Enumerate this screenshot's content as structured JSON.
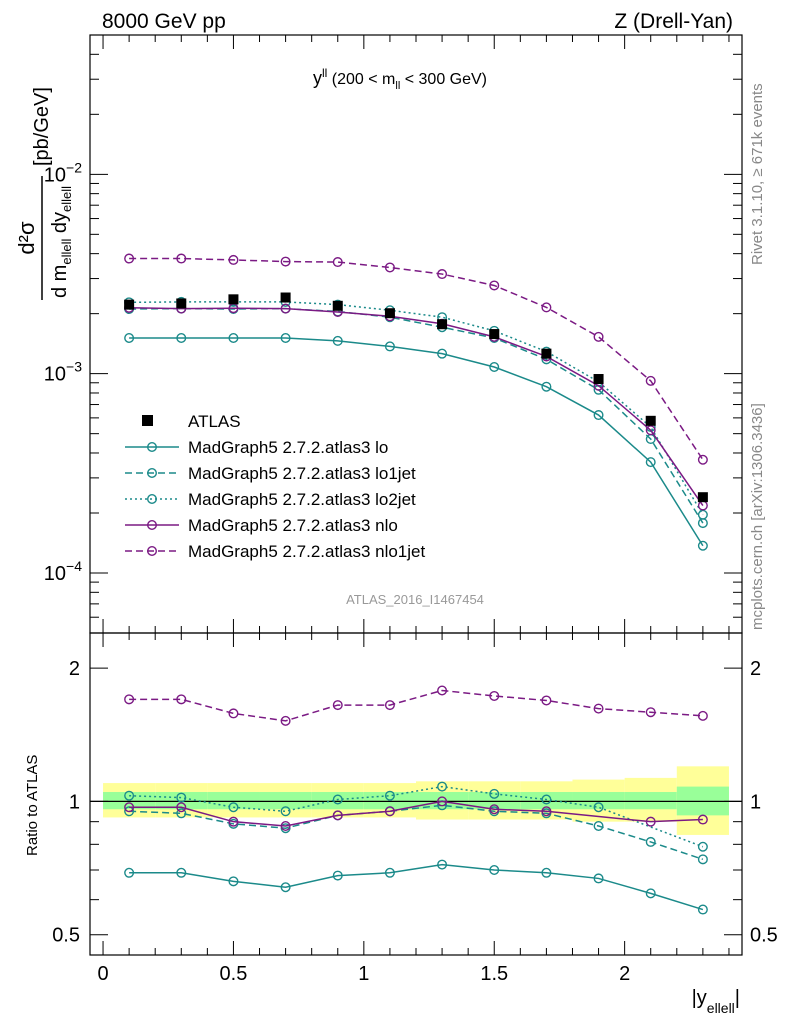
{
  "header": {
    "left": "8000 GeV pp",
    "right": "Z (Drell-Yan)"
  },
  "side_labels": {
    "rivet": "Rivet 3.1.10, ≥ 671k events",
    "mcplots": "mcplots.cern.ch [arXiv:1306.3436]"
  },
  "colors": {
    "teal": "#1b8a8a",
    "purple": "#7b1a84",
    "band_inner": "#99ff99",
    "band_outer": "#ffff99",
    "data": "#000000"
  },
  "chart_data": [
    {
      "type": "line",
      "panel": "main",
      "title": "y^ll (200 < m_ll < 300 GeV)",
      "title_parts": {
        "base": "y",
        "sup": "ll",
        "open": "(200 < m",
        "sub": "ll",
        "close": " < 300 GeV)"
      },
      "ylabel": "d²σ / d m_ellell dy_ellell [pb/GeV]",
      "ylabel_parts": {
        "num": "d²σ",
        "den_d": "d m",
        "den_sub": "ellell",
        "den_dy": "dy",
        "den_dy_sub": "ellell",
        "unit": "[pb/GeV]"
      },
      "yscale": "log",
      "ylim": [
        5e-05,
        0.05
      ],
      "xlim": [
        -0.05,
        2.45
      ],
      "yticks": [
        {
          "value": 0.0001,
          "label": "10",
          "exp": "−4"
        },
        {
          "value": 0.001,
          "label": "10",
          "exp": "−3"
        },
        {
          "value": 0.01,
          "label": "10",
          "exp": "−2"
        }
      ],
      "watermark": "ATLAS_2016_I1467454",
      "legend_position": "middle-left",
      "x": [
        0.1,
        0.3,
        0.5,
        0.7,
        0.9,
        1.1,
        1.3,
        1.5,
        1.7,
        1.9,
        2.1,
        2.3
      ],
      "data": {
        "name": "ATLAS",
        "values": [
          0.00222,
          0.00225,
          0.00236,
          0.00241,
          0.00219,
          0.00201,
          0.00177,
          0.00158,
          0.00126,
          0.00094,
          0.00058,
          0.00024
        ]
      },
      "series": [
        {
          "name": "MadGraph5 2.7.2.atlas3 lo",
          "color": "#1b8a8a",
          "dash": "solid",
          "values": [
            0.00151,
            0.00151,
            0.00151,
            0.00151,
            0.00146,
            0.00137,
            0.00126,
            0.00108,
            0.00086,
            0.00062,
            0.00036,
            0.000137
          ]
        },
        {
          "name": "MadGraph5 2.7.2.atlas3 lo1jet",
          "color": "#1b8a8a",
          "dash": "dashed",
          "values": [
            0.00211,
            0.00212,
            0.00211,
            0.00212,
            0.00205,
            0.00192,
            0.00171,
            0.00151,
            0.00118,
            0.00083,
            0.00047,
            0.000178
          ]
        },
        {
          "name": "MadGraph5 2.7.2.atlas3 lo2jet",
          "color": "#1b8a8a",
          "dash": "dotted",
          "values": [
            0.00228,
            0.00229,
            0.00229,
            0.00229,
            0.00222,
            0.00208,
            0.00192,
            0.00164,
            0.00129,
            0.00091,
            0.00054,
            0.000196
          ]
        },
        {
          "name": "MadGraph5 2.7.2.atlas3 nlo",
          "color": "#7b1a84",
          "dash": "solid",
          "values": [
            0.00214,
            0.00212,
            0.00213,
            0.00212,
            0.00204,
            0.00194,
            0.00178,
            0.00153,
            0.00122,
            0.00087,
            0.00052,
            0.000218
          ]
        },
        {
          "name": "MadGraph5 2.7.2.atlas3 nlo1jet",
          "color": "#7b1a84",
          "dash": "dashed",
          "values": [
            0.00378,
            0.00378,
            0.00372,
            0.00365,
            0.00363,
            0.00341,
            0.00316,
            0.00277,
            0.00215,
            0.00153,
            0.00092,
            0.00037
          ]
        }
      ]
    },
    {
      "type": "line",
      "panel": "ratio",
      "ylabel": "Ratio to ATLAS",
      "xlabel": "|y_ellell|",
      "xlabel_parts": {
        "base": "|y",
        "sub": "ellell",
        "close": "|"
      },
      "yscale": "log",
      "ylim": [
        0.45,
        2.4
      ],
      "xlim": [
        -0.05,
        2.45
      ],
      "yticks": [
        0.5,
        1,
        2
      ],
      "xticks": [
        0,
        0.5,
        1,
        1.5,
        2
      ],
      "x": [
        0.1,
        0.3,
        0.5,
        0.7,
        0.9,
        1.1,
        1.3,
        1.5,
        1.7,
        1.9,
        2.1,
        2.3
      ],
      "bands": {
        "x_edges": [
          0.0,
          0.2,
          0.4,
          0.6,
          0.8,
          1.0,
          1.2,
          1.4,
          1.6,
          1.8,
          2.0,
          2.2,
          2.4
        ],
        "inner": [
          [
            0.96,
            1.05
          ],
          [
            0.96,
            1.05
          ],
          [
            0.96,
            1.05
          ],
          [
            0.96,
            1.05
          ],
          [
            0.96,
            1.05
          ],
          [
            0.96,
            1.05
          ],
          [
            0.96,
            1.05
          ],
          [
            0.96,
            1.05
          ],
          [
            0.96,
            1.05
          ],
          [
            0.96,
            1.05
          ],
          [
            0.96,
            1.05
          ],
          [
            0.93,
            1.08
          ]
        ],
        "outer": [
          [
            0.92,
            1.1
          ],
          [
            0.92,
            1.1
          ],
          [
            0.92,
            1.1
          ],
          [
            0.92,
            1.1
          ],
          [
            0.92,
            1.1
          ],
          [
            0.92,
            1.1
          ],
          [
            0.91,
            1.11
          ],
          [
            0.91,
            1.11
          ],
          [
            0.91,
            1.11
          ],
          [
            0.9,
            1.12
          ],
          [
            0.9,
            1.13
          ],
          [
            0.84,
            1.2
          ]
        ]
      },
      "series": [
        {
          "name": "MadGraph5 2.7.2.atlas3 lo",
          "color": "#1b8a8a",
          "dash": "solid",
          "values": [
            0.69,
            0.69,
            0.66,
            0.64,
            0.68,
            0.69,
            0.72,
            0.7,
            0.69,
            0.67,
            0.62,
            0.57
          ]
        },
        {
          "name": "MadGraph5 2.7.2.atlas3 lo1jet",
          "color": "#1b8a8a",
          "dash": "dashed",
          "values": [
            0.95,
            0.94,
            0.89,
            0.87,
            0.93,
            0.95,
            0.98,
            0.95,
            0.94,
            0.88,
            0.81,
            0.74
          ]
        },
        {
          "name": "MadGraph5 2.7.2.atlas3 lo2jet",
          "color": "#1b8a8a",
          "dash": "dotted",
          "values": [
            1.03,
            1.02,
            0.97,
            0.95,
            1.01,
            1.03,
            1.08,
            1.04,
            1.01,
            0.97,
            null,
            0.79
          ]
        },
        {
          "name": "MadGraph5 2.7.2.atlas3 nlo",
          "color": "#7b1a84",
          "dash": "solid",
          "values": [
            0.97,
            0.97,
            0.9,
            0.88,
            0.93,
            0.95,
            1.0,
            0.96,
            0.95,
            null,
            0.9,
            0.91
          ]
        },
        {
          "name": "MadGraph5 2.7.2.atlas3 nlo1jet",
          "color": "#7b1a84",
          "dash": "dashed",
          "values": [
            1.7,
            1.7,
            1.58,
            1.52,
            1.65,
            1.65,
            1.78,
            1.73,
            1.69,
            1.62,
            1.59,
            1.56
          ]
        }
      ]
    }
  ]
}
